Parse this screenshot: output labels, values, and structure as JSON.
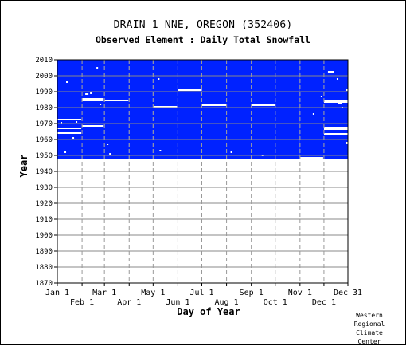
{
  "title": "DRAIN 1 NNE, OREGON   (352406)",
  "subtitle": "Observed Element : Daily Total Snowfall",
  "credit": [
    "Western",
    "Regional",
    "Climate",
    "Center"
  ],
  "colors": {
    "data_fill": "#0022ff",
    "grid": "#999999",
    "gap": "#ffffff"
  },
  "chart_data": {
    "type": "heatmap",
    "xlabel": "Day of Year",
    "ylabel": "Year",
    "xlim": [
      1,
      365
    ],
    "ylim": [
      1870,
      2010
    ],
    "y_ticks": [
      1870,
      1880,
      1890,
      1900,
      1910,
      1920,
      1930,
      1940,
      1950,
      1960,
      1970,
      1980,
      1990,
      2000,
      2010
    ],
    "x_ticks_top_row": [
      {
        "label": "Jan 1",
        "day": 1
      },
      {
        "label": "Mar 1",
        "day": 60
      },
      {
        "label": "May 1",
        "day": 121
      },
      {
        "label": "Jul 1",
        "day": 182
      },
      {
        "label": "Sep 1",
        "day": 244
      },
      {
        "label": "Nov 1",
        "day": 305
      },
      {
        "label": "Dec 31",
        "day": 365
      }
    ],
    "x_ticks_bottom_row": [
      {
        "label": "Feb 1",
        "day": 32
      },
      {
        "label": "Apr 1",
        "day": 91
      },
      {
        "label": "Jun 1",
        "day": 152
      },
      {
        "label": "Aug 1",
        "day": 213
      },
      {
        "label": "Oct 1",
        "day": 274
      },
      {
        "label": "Dec 1",
        "day": 335
      }
    ],
    "coverage": {
      "start_year": 1948,
      "end_year": 2010,
      "start_year_by_segment": [
        {
          "day_from": 1,
          "day_to": 182,
          "year": 1948
        },
        {
          "day_from": 182,
          "day_to": 305,
          "year": 1947.5
        },
        {
          "day_from": 305,
          "day_to": 365,
          "year": 1948
        }
      ]
    },
    "missing_periods": [
      {
        "day_from": 1,
        "day_to": 31,
        "year": 1972.5
      },
      {
        "day_from": 1,
        "day_to": 31,
        "year": 1967
      },
      {
        "day_from": 1,
        "day_to": 31,
        "year": 1964
      },
      {
        "day_from": 32,
        "day_to": 59,
        "year": 1985.5
      },
      {
        "day_from": 32,
        "day_to": 59,
        "year": 1984.5
      },
      {
        "day_from": 32,
        "day_to": 59,
        "year": 1968.5
      },
      {
        "day_from": 36,
        "day_to": 40,
        "year": 1988.5
      },
      {
        "day_from": 60,
        "day_to": 90,
        "year": 1984.5
      },
      {
        "day_from": 121,
        "day_to": 151,
        "year": 1980.5
      },
      {
        "day_from": 152,
        "day_to": 182,
        "year": 1991
      },
      {
        "day_from": 182,
        "day_to": 213,
        "year": 1981.5
      },
      {
        "day_from": 244,
        "day_to": 274,
        "year": 1981.5
      },
      {
        "day_from": 305,
        "day_to": 334,
        "year": 1948.5
      },
      {
        "day_from": 335,
        "day_to": 365,
        "year": 1984.5
      },
      {
        "day_from": 335,
        "day_to": 365,
        "year": 1983.5
      },
      {
        "day_from": 335,
        "day_to": 365,
        "year": 1967.5
      },
      {
        "day_from": 335,
        "day_to": 365,
        "year": 1966.5
      },
      {
        "day_from": 335,
        "day_to": 365,
        "year": 1963.5
      },
      {
        "day_from": 340,
        "day_to": 348,
        "year": 2002.5
      },
      {
        "day_from": 353,
        "day_to": 357,
        "year": 1982.5
      }
    ],
    "missing_days": [
      {
        "day": 13,
        "year": 1996
      },
      {
        "day": 6,
        "year": 1970.5
      },
      {
        "day": 11,
        "year": 1952
      },
      {
        "day": 21,
        "year": 1961
      },
      {
        "day": 25,
        "year": 1971
      },
      {
        "day": 43,
        "year": 1989
      },
      {
        "day": 51,
        "year": 2005
      },
      {
        "day": 55,
        "year": 1982
      },
      {
        "day": 64,
        "year": 1957
      },
      {
        "day": 67,
        "year": 1951
      },
      {
        "day": 128,
        "year": 1998
      },
      {
        "day": 130,
        "year": 1953
      },
      {
        "day": 219,
        "year": 1952
      },
      {
        "day": 258,
        "year": 1950
      },
      {
        "day": 322,
        "year": 1976
      },
      {
        "day": 352,
        "year": 1998
      },
      {
        "day": 358,
        "year": 1980
      },
      {
        "day": 364,
        "year": 1991
      },
      {
        "day": 364,
        "year": 1958
      },
      {
        "day": 332,
        "year": 1987
      }
    ]
  }
}
